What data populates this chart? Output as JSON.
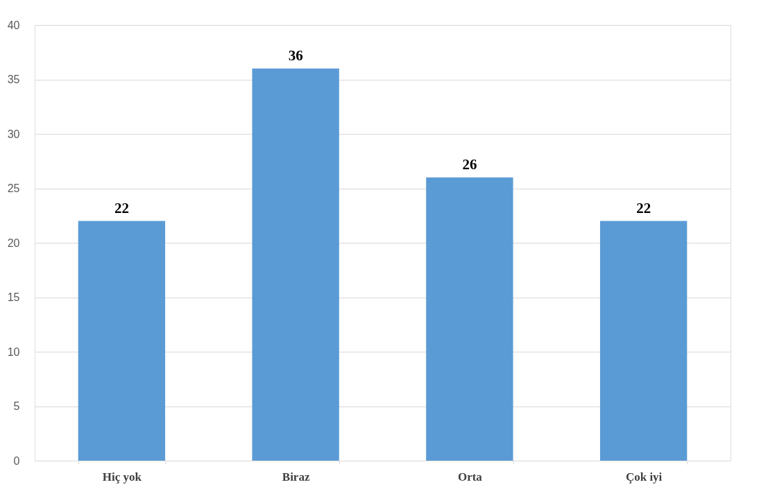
{
  "chart_data": {
    "type": "bar",
    "categories": [
      "Hiç yok",
      "Biraz",
      "Orta",
      "Çok iyi"
    ],
    "values": [
      22,
      36,
      26,
      22
    ],
    "color": "#5b9bd5",
    "ylim": [
      0,
      40
    ],
    "yticks": [
      0,
      5,
      10,
      15,
      20,
      25,
      30,
      35,
      40
    ],
    "grid": "y",
    "data_labels": true
  }
}
